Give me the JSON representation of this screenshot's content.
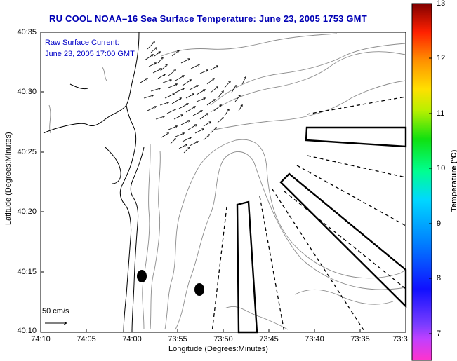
{
  "title": "RU COOL  NOAA–16  Sea Surface Temperature:  June 23, 2005 1753 GMT",
  "legend": {
    "line1": "Raw Surface Current:",
    "line2": "June 23, 2005 17:00 GMT"
  },
  "axes": {
    "xlabel": "Longitude (Degrees:Minutes)",
    "ylabel": "Latitude (Degrees:Minutes)",
    "x_ticks": [
      "74:10",
      "74:05",
      "74:00",
      "73:55",
      "73:50",
      "73:45",
      "73:40",
      "73:35",
      "73:3"
    ],
    "y_ticks": [
      "40:35",
      "40:30",
      "40:25",
      "40:20",
      "40:15",
      "40:10"
    ]
  },
  "colorbar": {
    "label": "Temperature (°C)",
    "ticks": [
      "13",
      "12",
      "11",
      "10",
      "9",
      "8",
      "7"
    ]
  },
  "scale": {
    "label": "50 cm/s"
  },
  "colors": {
    "title": "#0000b4",
    "legend_text": "#0000c8",
    "contour": "#8c8c8c",
    "coast": "#000000"
  }
}
